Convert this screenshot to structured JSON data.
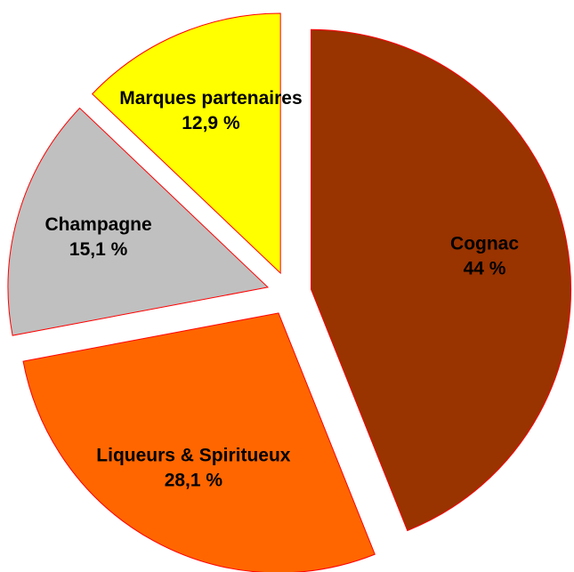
{
  "chart_data": {
    "type": "pie",
    "categories": [
      "Cognac",
      "Liqueurs & Spiritueux",
      "Champagne",
      "Marques partenaires"
    ],
    "values": [
      44,
      28.1,
      15.1,
      12.9
    ],
    "value_labels": [
      "44 %",
      "28,1 %",
      "15,1 %",
      "12,9 %"
    ],
    "colors": [
      "#993300",
      "#ff6600",
      "#c0c0c0",
      "#ffff00"
    ],
    "exploded": true
  }
}
